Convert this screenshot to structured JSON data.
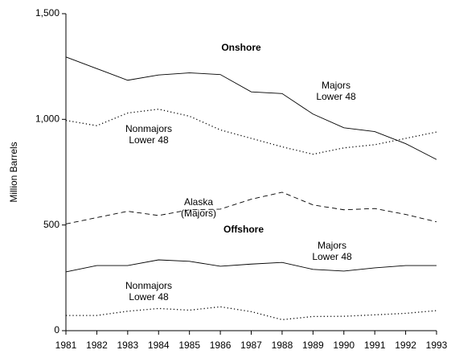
{
  "chart_data": {
    "type": "line",
    "y_label": "Million Barrels",
    "annotations": [
      "Onshore",
      "Offshore"
    ],
    "x": [
      1981,
      1982,
      1983,
      1984,
      1985,
      1986,
      1987,
      1988,
      1989,
      1990,
      1991,
      1992,
      1993
    ],
    "xlim": [
      1981,
      1993
    ],
    "xticks": [
      1981,
      1982,
      1983,
      1984,
      1985,
      1986,
      1987,
      1988,
      1989,
      1990,
      1991,
      1992,
      1993
    ],
    "ylim": [
      0,
      1500
    ],
    "yticks": [
      0,
      500,
      {
        "value": 1000,
        "label": "1,000"
      },
      {
        "value": 1500,
        "label": "1,500"
      }
    ],
    "grid": false,
    "series": [
      {
        "name": "Majors Lower 48",
        "color": "#000000",
        "dash": "solid",
        "values": [
          1295,
          1240,
          1185,
          1210,
          1220,
          1212,
          1130,
          1122,
          1025,
          960,
          942,
          885,
          810
        ]
      },
      {
        "name": "Nonmajors Lower 48",
        "color": "#000000",
        "dash": "dotted",
        "values": [
          995,
          970,
          1030,
          1048,
          1015,
          950,
          910,
          870,
          835,
          865,
          880,
          910,
          940
        ]
      },
      {
        "name": "Alaska (Majors)",
        "color": "#000000",
        "dash": "dashed",
        "values": [
          505,
          535,
          565,
          545,
          572,
          575,
          622,
          655,
          595,
          572,
          578,
          550,
          515
        ]
      },
      {
        "name": "Majors Lower 48",
        "color": "#000000",
        "dash": "solid",
        "values": [
          278,
          308,
          308,
          335,
          328,
          305,
          315,
          323,
          290,
          282,
          297,
          308,
          308
        ]
      },
      {
        "name": "Nonmajors Lower 48",
        "color": "#000000",
        "dash": "dotted",
        "values": [
          72,
          72,
          92,
          105,
          97,
          113,
          90,
          52,
          67,
          68,
          75,
          82,
          95
        ]
      }
    ]
  }
}
